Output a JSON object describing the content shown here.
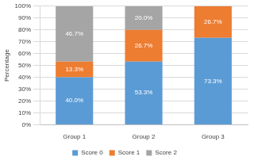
{
  "chart_data": {
    "type": "bar",
    "stacked": true,
    "y_label": "Percentage",
    "categories": [
      "Group 1",
      "Group 2",
      "Group 3"
    ],
    "series": [
      {
        "name": "Score 0",
        "color": "#5b9bd5",
        "values": [
          40.0,
          53.3,
          73.3
        ],
        "value_labels": [
          "40.0%",
          "53.3%",
          "73.3%"
        ]
      },
      {
        "name": "Score 1",
        "color": "#ed7d31",
        "values": [
          13.3,
          26.7,
          26.7
        ],
        "value_labels": [
          "13.3%",
          "26.7%",
          "26.7%"
        ]
      },
      {
        "name": "Score 2",
        "color": "#a5a5a5",
        "values": [
          46.7,
          20.0,
          0
        ],
        "value_labels": [
          "46.7%",
          "20.0%",
          null
        ]
      }
    ],
    "ylim": [
      0,
      100
    ],
    "yticks": [
      {
        "value": 0,
        "label": "0%"
      },
      {
        "value": 10,
        "label": "10%"
      },
      {
        "value": 20,
        "label": "20%"
      },
      {
        "value": 30,
        "label": "30%"
      },
      {
        "value": 40,
        "label": "40%"
      },
      {
        "value": 50,
        "label": "50%"
      },
      {
        "value": 60,
        "label": "60%"
      },
      {
        "value": 70,
        "label": "70%"
      },
      {
        "value": 80,
        "label": "80%"
      },
      {
        "value": 90,
        "label": "90%"
      },
      {
        "value": 100,
        "label": "100%"
      }
    ],
    "grid": true,
    "legend": "bottom",
    "data_labels": true
  }
}
